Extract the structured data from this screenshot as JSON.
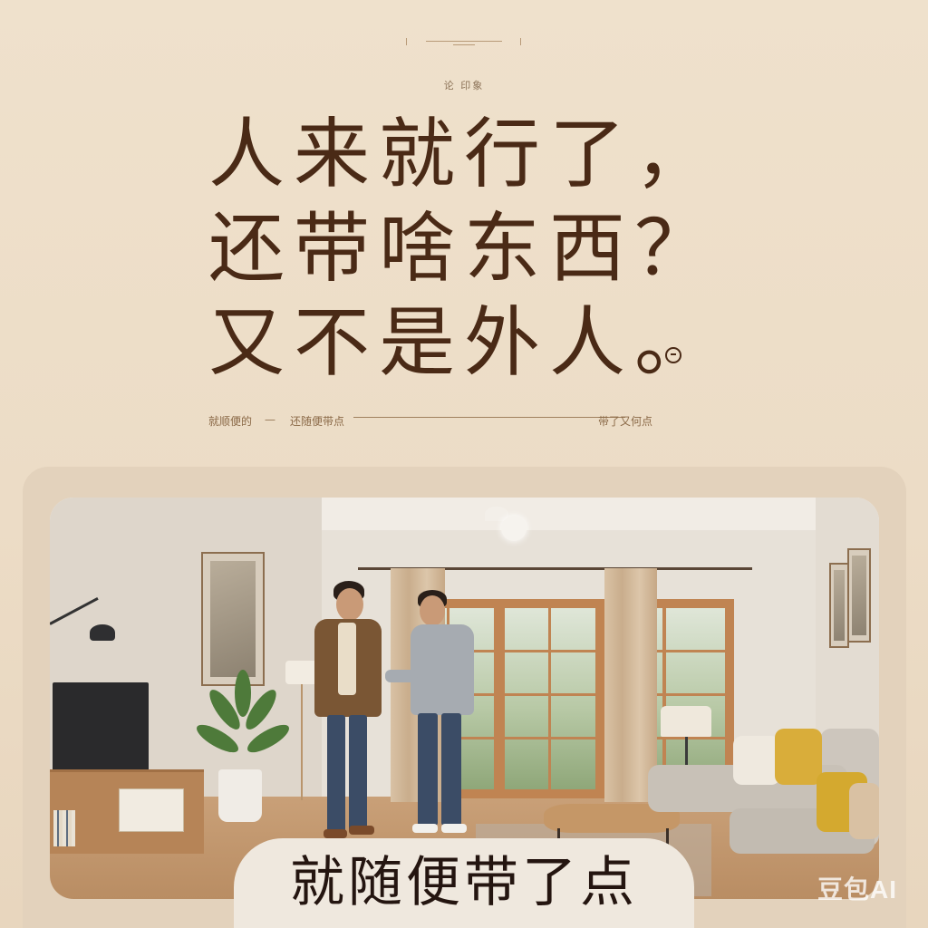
{
  "top_small": "论 印象",
  "headline": [
    "人来就行了，",
    "还带啥东西？",
    "又不是外人。"
  ],
  "strip": {
    "left": "就顺便的",
    "dash": "—",
    "middle": "还随便带点",
    "right": "带了又何点"
  },
  "caption": "就随便带了点",
  "watermark": "豆包AI",
  "colors": {
    "background": "#ecdcc6",
    "headline": "#4a2a16",
    "card": "#e3d2bc"
  }
}
